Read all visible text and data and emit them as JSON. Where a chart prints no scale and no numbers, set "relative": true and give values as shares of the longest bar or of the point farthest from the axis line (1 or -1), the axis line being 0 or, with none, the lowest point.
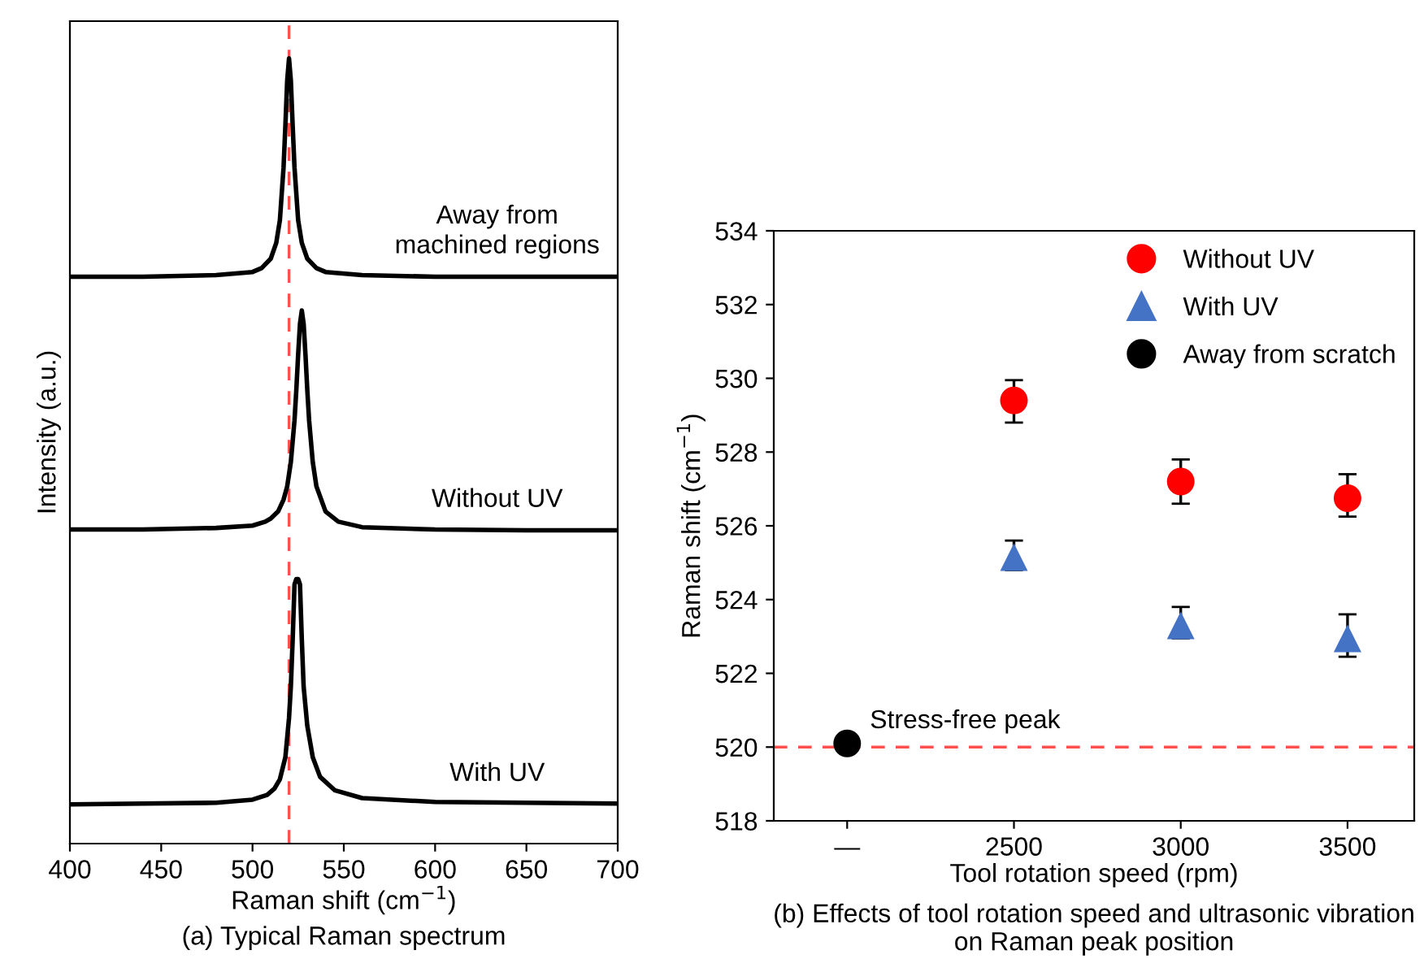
{
  "chart_data": [
    {
      "type": "line",
      "relative": true,
      "title": "(a) Typical Raman spectrum",
      "xlabel": "Raman shift (cm$^{−1}$)",
      "ylabel": "Intensity (a.u.)",
      "xlim": [
        400,
        700
      ],
      "xticks": [
        400,
        450,
        500,
        550,
        600,
        650,
        700
      ],
      "legend": false,
      "grid": false,
      "marker": "none",
      "line_style": "solid",
      "ref_lines": [
        {
          "axis": "x",
          "value": 520,
          "color": "#ff5050",
          "line_style": "dashed"
        }
      ],
      "series": [
        {
          "name": "Away from\nmachined regions",
          "color": "#000000",
          "x": [
            400,
            440,
            480,
            500,
            505,
            510,
            513,
            515,
            517,
            518,
            519,
            520,
            521,
            522,
            523,
            525,
            527,
            530,
            535,
            540,
            560,
            600,
            650,
            700
          ],
          "values": [
            0.722,
            0.722,
            0.724,
            0.728,
            0.733,
            0.745,
            0.765,
            0.794,
            0.861,
            0.914,
            0.972,
            1.0,
            0.972,
            0.914,
            0.861,
            0.794,
            0.765,
            0.745,
            0.733,
            0.728,
            0.724,
            0.722,
            0.722,
            0.722
          ]
        },
        {
          "name": "Without UV",
          "color": "#000000",
          "x": [
            400,
            440,
            480,
            500,
            507,
            510,
            514,
            517,
            519,
            521,
            523,
            524,
            525,
            526,
            527,
            528,
            529,
            530,
            531,
            533,
            535,
            540,
            547,
            560,
            600,
            650,
            700
          ],
          "values": [
            0.4,
            0.4,
            0.402,
            0.405,
            0.41,
            0.414,
            0.423,
            0.438,
            0.455,
            0.486,
            0.539,
            0.578,
            0.623,
            0.662,
            0.679,
            0.662,
            0.623,
            0.578,
            0.539,
            0.486,
            0.455,
            0.423,
            0.41,
            0.403,
            0.4,
            0.399,
            0.399
          ]
        },
        {
          "name": "With UV",
          "color": "#000000",
          "x": [
            400,
            440,
            480,
            500,
            508,
            512,
            515,
            518,
            520,
            521,
            522,
            523,
            524,
            525,
            526,
            527,
            528,
            530,
            533,
            537,
            545,
            560,
            600,
            650,
            700
          ],
          "values": [
            0.05,
            0.051,
            0.052,
            0.056,
            0.062,
            0.07,
            0.082,
            0.11,
            0.16,
            0.2,
            0.26,
            0.33,
            0.337,
            0.337,
            0.33,
            0.26,
            0.2,
            0.15,
            0.11,
            0.085,
            0.068,
            0.058,
            0.053,
            0.052,
            0.051
          ]
        }
      ]
    },
    {
      "type": "scatter",
      "title": "(b) Effects of tool rotation speed and ultrasonic vibration on Raman peak position",
      "xlabel": "Tool rotation speed (rpm)",
      "ylabel": "Raman shift (cm$^{−1}$)",
      "categories": [
        "—",
        "2500",
        "3000",
        "3500"
      ],
      "ylim": [
        518,
        534
      ],
      "yticks": [
        518,
        520,
        522,
        524,
        526,
        528,
        530,
        532,
        534
      ],
      "legend": "top right",
      "grid": false,
      "ref_lines": [
        {
          "axis": "y",
          "value": 520,
          "label": "Stress-free peak",
          "color": "#ff5050",
          "line_style": "dashed"
        }
      ],
      "series": [
        {
          "name": "Without UV",
          "color": "#ff0000",
          "marker": "circle",
          "values": [
            null,
            529.4,
            527.2,
            526.75
          ],
          "errors": [
            null,
            [
              528.8,
              529.95
            ],
            [
              526.6,
              527.8
            ],
            [
              526.25,
              527.4
            ]
          ]
        },
        {
          "name": "With UV",
          "color": "#4472c4",
          "marker": "triangle",
          "values": [
            null,
            525.15,
            523.3,
            522.95
          ],
          "errors": [
            null,
            [
              524.8,
              525.6
            ],
            [
              522.95,
              523.8
            ],
            [
              522.45,
              523.6
            ]
          ]
        },
        {
          "name": "Away from scratch",
          "color": "#000000",
          "marker": "circle",
          "values": [
            520.1,
            null,
            null,
            null
          ]
        }
      ]
    }
  ]
}
